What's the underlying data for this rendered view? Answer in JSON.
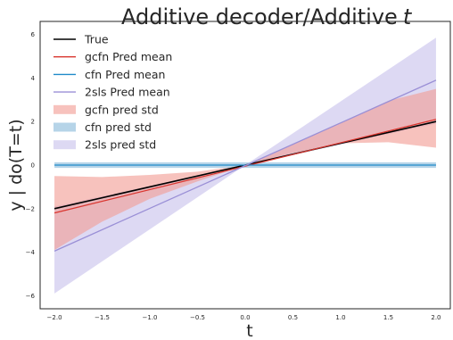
{
  "chart_data": {
    "type": "line",
    "title": "Additive decoder/Additive",
    "title_math": "t",
    "xlabel": "t",
    "ylabel": "y | do(T=t)",
    "xlim": [
      -2.15,
      2.15
    ],
    "ylim": [
      -6.6,
      6.6
    ],
    "xticks": [
      -2.0,
      -1.5,
      -1.0,
      -0.5,
      0.0,
      0.5,
      1.0,
      1.5,
      2.0
    ],
    "xtick_labels": [
      "−2.0",
      "−1.5",
      "−1.0",
      "−0.5",
      "0.0",
      "0.5",
      "1.0",
      "1.5",
      "2.0"
    ],
    "yticks": [
      -6,
      -4,
      -2,
      0,
      2,
      4,
      6
    ],
    "ytick_labels": [
      "−6",
      "−4",
      "−2",
      "0",
      "2",
      "4",
      "6"
    ],
    "grid": false,
    "legend_position": "top-left",
    "colors": {
      "true": "#000000",
      "gcfn": "#d9362f",
      "cfn": "#1f8ac9",
      "sls": "#9a8fd6",
      "gcfn_band": "#f29d95",
      "cfn_band": "#9dc5e0",
      "sls_band": "#c8c2ec"
    },
    "series": [
      {
        "name": "True",
        "kind": "line",
        "color": "#000000",
        "x": [
          -2.0,
          2.0
        ],
        "y": [
          -2.0,
          2.0
        ]
      },
      {
        "name": "gcfn Pred mean",
        "kind": "line",
        "color": "#d9362f",
        "x": [
          -2.0,
          2.0
        ],
        "y": [
          -2.2,
          2.1
        ]
      },
      {
        "name": "cfn Pred mean",
        "kind": "line",
        "color": "#1f8ac9",
        "x": [
          -2.0,
          2.0
        ],
        "y": [
          0.0,
          0.0
        ]
      },
      {
        "name": "2sls Pred mean",
        "kind": "line",
        "color": "#9a8fd6",
        "x": [
          -2.0,
          2.0
        ],
        "y": [
          -3.95,
          3.9
        ]
      },
      {
        "name": "gcfn pred std",
        "kind": "band",
        "color": "#f29d95",
        "x": [
          -2.0,
          -1.5,
          -1.0,
          -0.5,
          0.0,
          0.5,
          1.0,
          1.5,
          2.0
        ],
        "lower": [
          -3.9,
          -2.6,
          -1.55,
          -0.75,
          0.0,
          0.55,
          1.0,
          1.05,
          0.8
        ],
        "upper": [
          -0.5,
          -0.55,
          -0.45,
          -0.3,
          0.0,
          0.95,
          1.95,
          2.95,
          3.5
        ]
      },
      {
        "name": "cfn pred std",
        "kind": "band",
        "color": "#9dc5e0",
        "x": [
          -2.0,
          2.0
        ],
        "lower": [
          -0.13,
          -0.13
        ],
        "upper": [
          0.13,
          0.13
        ]
      },
      {
        "name": "2sls pred std",
        "kind": "band",
        "color": "#c8c2ec",
        "x": [
          -2.0,
          0.0,
          2.0
        ],
        "lower": [
          -5.9,
          0.0,
          1.9
        ],
        "upper": [
          -1.9,
          0.0,
          5.85
        ]
      }
    ]
  }
}
